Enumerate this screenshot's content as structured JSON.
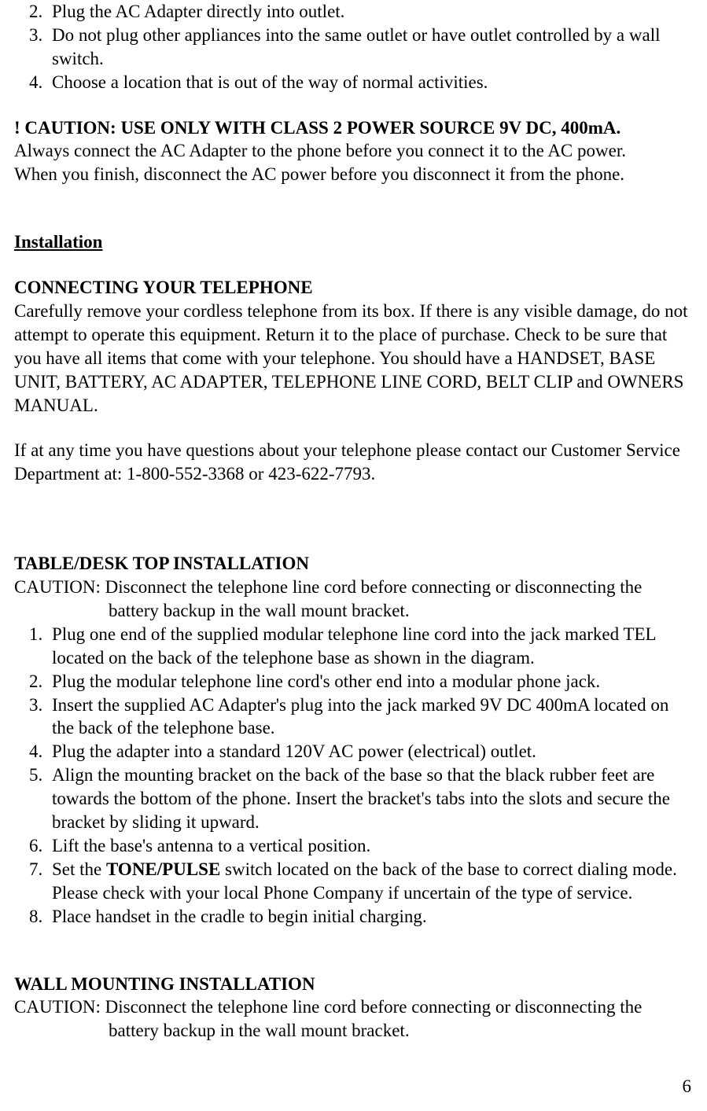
{
  "top_list": {
    "start": 2,
    "items": [
      "Plug the AC Adapter directly into outlet.",
      "Do not plug other appliances into the same outlet or have outlet controlled by a wall switch.",
      "Choose a location that is out of the way of normal activities."
    ]
  },
  "caution_power": {
    "heading": "! CAUTION: USE ONLY WITH CLASS 2 POWER SOURCE 9V DC, 400mA.",
    "line1": "Always connect the AC Adapter to the phone before you connect it to the AC power.",
    "line2": "When you finish, disconnect the AC power before you disconnect it from the phone."
  },
  "installation_heading": "Installation",
  "connecting": {
    "heading": "CONNECTING YOUR TELEPHONE",
    "para1": "Carefully remove your cordless telephone from its box. If there is any visible damage, do not attempt to operate this equipment. Return it to the place of purchase.  Check to be sure that you have all items that come with your telephone. You should have a HANDSET, BASE UNIT, BATTERY, AC ADAPTER, TELEPHONE LINE CORD, BELT CLIP and OWNERS MANUAL.",
    "para2": "If at any time you have questions about your telephone please contact our Customer Service Department at: 1-800-552-3368 or 423-622-7793."
  },
  "table_install": {
    "heading": "TABLE/DESK TOP INSTALLATION",
    "caution_line1": "CAUTION: Disconnect the telephone line cord before connecting or disconnecting the",
    "caution_line2": "battery backup in the wall mount bracket.",
    "items": [
      "Plug one end of the supplied modular telephone line cord into the jack marked TEL located on the back of the telephone base as shown in the diagram.",
      "Plug the modular telephone line cord's other end into a modular phone jack.",
      "Insert the supplied AC Adapter's plug into the jack marked 9V DC 400mA located on the back of the telephone base.",
      "Plug the adapter into a standard 120V AC power (electrical) outlet.",
      "Align the mounting bracket on the back of the base so that the black rubber feet are towards the bottom of the phone. Insert the bracket's tabs into the slots and secure the bracket by sliding it upward.",
      "Lift the base's antenna to a vertical position.",
      {
        "pre": "Set the ",
        "bold": "TONE/PULSE",
        "post": " switch located on the back of the base to correct dialing mode.  Please check with your local Phone Company if uncertain of the type of service."
      },
      "Place handset in the cradle to begin initial charging."
    ]
  },
  "wall_install": {
    "heading": "WALL MOUNTING INSTALLATION",
    "caution_line1": "CAUTION: Disconnect the telephone line cord before connecting or disconnecting the",
    "caution_line2": "battery backup in the wall mount bracket."
  },
  "page_number": "6"
}
